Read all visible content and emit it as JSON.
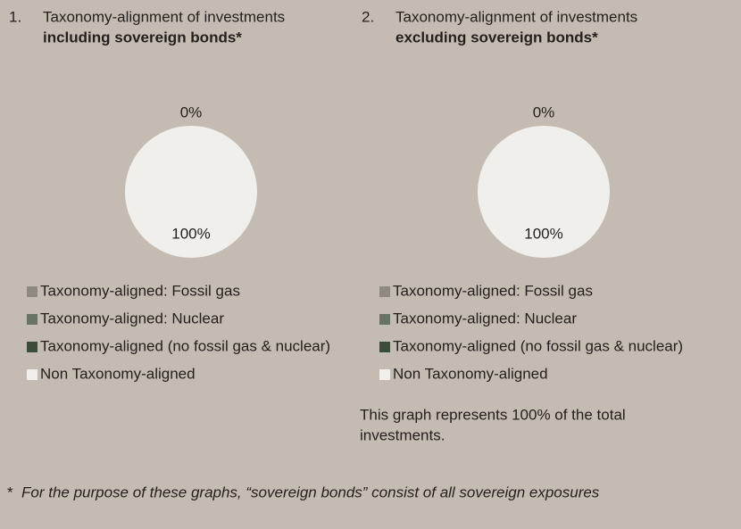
{
  "chart_data": [
    {
      "type": "pie",
      "number": "1.",
      "title": "Taxonomy-alignment of investments",
      "subtitle": "including sovereign bonds*",
      "categories": [
        "Taxonomy-aligned: Fossil gas",
        "Taxonomy-aligned: Nuclear",
        "Taxonomy-aligned (no fossil gas & nuclear)",
        "Non Taxonomy-aligned"
      ],
      "colors": [
        "#8e8a80",
        "#687363",
        "#3d4b39",
        "#f1efeb"
      ],
      "values": [
        0,
        0,
        0,
        100
      ],
      "value_labels": [
        "0%",
        null,
        null,
        "100%"
      ]
    },
    {
      "type": "pie",
      "number": "2.",
      "title": "Taxonomy-alignment of investments",
      "subtitle": "excluding sovereign bonds*",
      "categories": [
        "Taxonomy-aligned: Fossil gas",
        "Taxonomy-aligned: Nuclear",
        "Taxonomy-aligned (no fossil gas & nuclear)",
        "Non Taxonomy-aligned"
      ],
      "colors": [
        "#8e8a80",
        "#687363",
        "#3d4b39",
        "#f1efeb"
      ],
      "values": [
        0,
        0,
        0,
        100
      ],
      "value_labels": [
        "0%",
        null,
        null,
        "100%"
      ],
      "note": [
        "This graph represents 100% of the total",
        "investments."
      ]
    }
  ],
  "footnote": [
    "*",
    "For the purpose of these graphs, “sovereign bonds” consist of all sovereign exposures"
  ]
}
